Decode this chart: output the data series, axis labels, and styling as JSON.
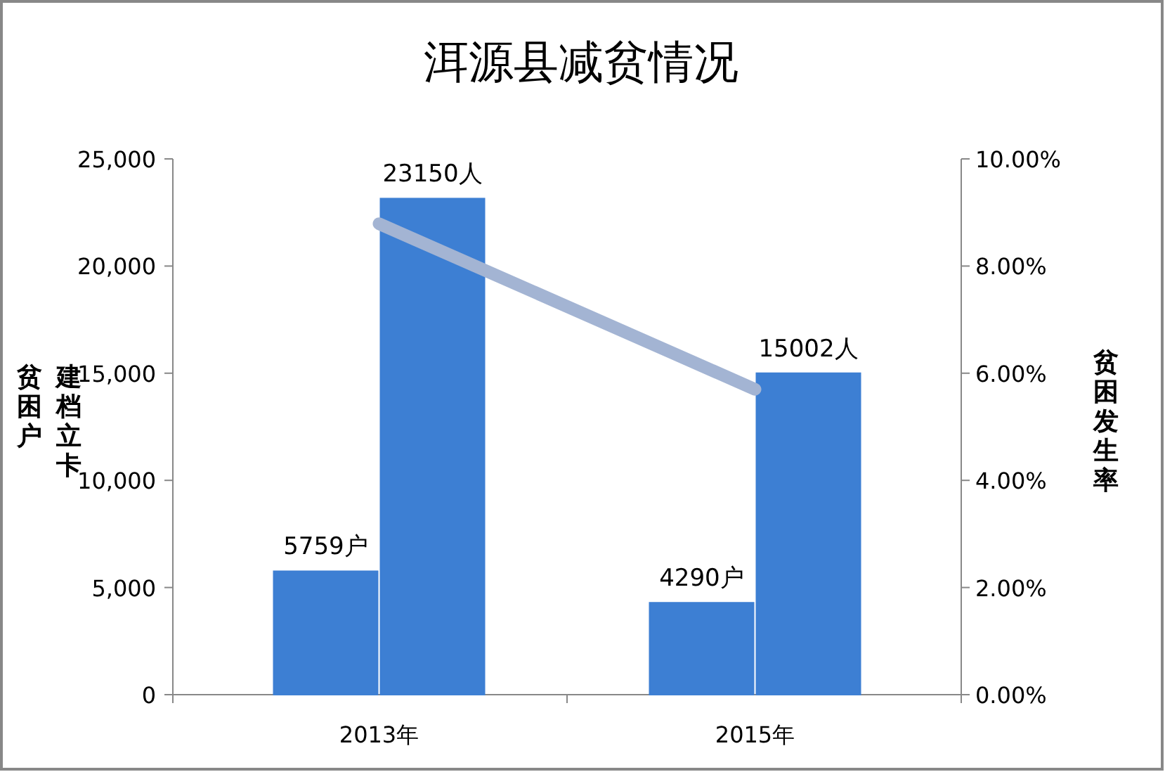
{
  "chart_data": {
    "type": "bar",
    "title": "洱源县减贫情况",
    "categories": [
      "2013年",
      "2015年"
    ],
    "ylabel": "建档立卡贫困户",
    "y2label": "贫困发生率",
    "series": [
      {
        "color": "#3d7fd3",
        "values": [
          5759,
          4290
        ],
        "value_labels": [
          "5759户",
          "4290户"
        ]
      },
      {
        "color": "#3d7fd3",
        "values": [
          23150,
          15002
        ],
        "value_labels": [
          "23150人",
          "15002人"
        ]
      },
      {
        "type": "line",
        "axis": "y2",
        "color": "#a3b4d3",
        "values": [
          8.79,
          5.7
        ],
        "marker": "none"
      }
    ],
    "ylim": [
      0,
      25000
    ],
    "yticks": [
      {
        "value": 0,
        "label": "0"
      },
      {
        "value": 5000,
        "label": "5,000"
      },
      {
        "value": 10000,
        "label": "10,000"
      },
      {
        "value": 15000,
        "label": "15,000"
      },
      {
        "value": 20000,
        "label": "20,000"
      },
      {
        "value": 25000,
        "label": "25,000"
      }
    ],
    "y2lim": [
      0,
      10
    ],
    "y2ticks": [
      {
        "value": 0,
        "label": "0.00%"
      },
      {
        "value": 2,
        "label": "2.00%"
      },
      {
        "value": 4,
        "label": "4.00%"
      },
      {
        "value": 6,
        "label": "6.00%"
      },
      {
        "value": 8,
        "label": "8.00%"
      },
      {
        "value": 10,
        "label": "10.00%"
      }
    ],
    "tick_labels": true
  }
}
